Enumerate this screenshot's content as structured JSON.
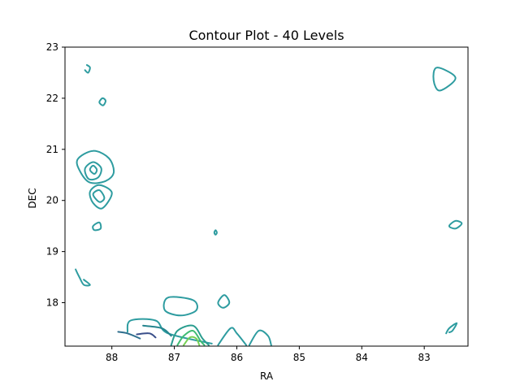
{
  "chart_data": {
    "type": "contour",
    "title": "Contour Plot - 40 Levels",
    "xlabel": "RA",
    "ylabel": "DEC",
    "xlim": [
      88.75,
      82.3
    ],
    "ylim": [
      17.15,
      23.0
    ],
    "x_inverted": true,
    "xticks": [
      88,
      87,
      86,
      85,
      84,
      83
    ],
    "yticks": [
      18,
      19,
      20,
      21,
      22,
      23
    ],
    "grid": false,
    "colormap": "viridis-like (dark blue to light green)",
    "contours": [
      {
        "color": "#2e9ca0",
        "closed": false,
        "points": [
          [
            88.4,
            22.65
          ],
          [
            88.35,
            22.6
          ],
          [
            88.38,
            22.5
          ],
          [
            88.43,
            22.55
          ]
        ]
      },
      {
        "color": "#2e9ca0",
        "closed": true,
        "points": [
          [
            88.15,
            22.0
          ],
          [
            88.1,
            21.95
          ],
          [
            88.14,
            21.86
          ],
          [
            88.2,
            21.92
          ]
        ]
      },
      {
        "color": "#2e9ca0",
        "closed": true,
        "points": [
          [
            88.55,
            20.8
          ],
          [
            88.3,
            20.97
          ],
          [
            88.05,
            20.83
          ],
          [
            87.97,
            20.55
          ],
          [
            88.1,
            20.38
          ],
          [
            88.35,
            20.35
          ],
          [
            88.5,
            20.55
          ]
        ]
      },
      {
        "color": "#2e9ca0",
        "closed": true,
        "points": [
          [
            88.43,
            20.62
          ],
          [
            88.3,
            20.75
          ],
          [
            88.17,
            20.63
          ],
          [
            88.22,
            20.45
          ],
          [
            88.37,
            20.42
          ]
        ]
      },
      {
        "color": "#2e9ca0",
        "closed": true,
        "points": [
          [
            88.35,
            20.6
          ],
          [
            88.3,
            20.68
          ],
          [
            88.24,
            20.6
          ],
          [
            88.28,
            20.52
          ]
        ]
      },
      {
        "color": "#2e9ca0",
        "closed": true,
        "points": [
          [
            88.35,
            20.17
          ],
          [
            88.2,
            20.3
          ],
          [
            88.0,
            20.15
          ],
          [
            88.15,
            19.85
          ],
          [
            88.3,
            19.95
          ]
        ]
      },
      {
        "color": "#2e9ca0",
        "closed": true,
        "points": [
          [
            88.3,
            20.12
          ],
          [
            88.2,
            20.2
          ],
          [
            88.12,
            20.05
          ],
          [
            88.2,
            19.97
          ]
        ]
      },
      {
        "color": "#2e9ca0",
        "closed": true,
        "points": [
          [
            88.3,
            19.5
          ],
          [
            88.2,
            19.57
          ],
          [
            88.18,
            19.45
          ],
          [
            88.28,
            19.42
          ]
        ]
      },
      {
        "color": "#2e9ca0",
        "closed": false,
        "points": [
          [
            88.58,
            18.65
          ],
          [
            88.52,
            18.5
          ],
          [
            88.45,
            18.35
          ],
          [
            88.35,
            18.35
          ],
          [
            88.45,
            18.45
          ]
        ]
      },
      {
        "color": "#2e9ca0",
        "closed": true,
        "points": [
          [
            86.36,
            19.37
          ],
          [
            86.34,
            19.42
          ],
          [
            86.32,
            19.37
          ],
          [
            86.34,
            19.33
          ]
        ]
      },
      {
        "color": "#2e9ca0",
        "closed": true,
        "points": [
          [
            87.1,
            18.1
          ],
          [
            86.7,
            18.05
          ],
          [
            86.65,
            17.85
          ],
          [
            86.9,
            17.75
          ],
          [
            87.15,
            17.85
          ]
        ]
      },
      {
        "color": "#2e9ca0",
        "closed": true,
        "points": [
          [
            86.2,
            18.15
          ],
          [
            86.12,
            18.0
          ],
          [
            86.22,
            17.9
          ],
          [
            86.3,
            18.0
          ]
        ]
      },
      {
        "color": "#2e9ca0",
        "closed": true,
        "points": [
          [
            82.8,
            22.6
          ],
          [
            82.5,
            22.4
          ],
          [
            82.75,
            22.15
          ],
          [
            82.85,
            22.35
          ]
        ]
      },
      {
        "color": "#2e9ca0",
        "closed": true,
        "points": [
          [
            82.5,
            19.6
          ],
          [
            82.6,
            19.5
          ],
          [
            82.5,
            19.45
          ],
          [
            82.4,
            19.55
          ]
        ]
      },
      {
        "color": "#2e9ca0",
        "closed": false,
        "points": [
          [
            82.65,
            17.4
          ],
          [
            82.6,
            17.5
          ],
          [
            82.48,
            17.6
          ],
          [
            82.55,
            17.45
          ],
          [
            82.6,
            17.42
          ]
        ]
      },
      {
        "color": "#2e9ca0",
        "closed": false,
        "points": [
          [
            87.75,
            17.43
          ],
          [
            87.7,
            17.65
          ],
          [
            87.3,
            17.65
          ],
          [
            87.1,
            17.4
          ],
          [
            86.4,
            17.2
          ]
        ]
      },
      {
        "color": "#2e9ca0",
        "closed": false,
        "points": [
          [
            86.3,
            17.17
          ],
          [
            86.1,
            17.5
          ],
          [
            86.0,
            17.4
          ],
          [
            85.85,
            17.17
          ]
        ]
      },
      {
        "color": "#2e9ca0",
        "closed": false,
        "points": [
          [
            85.8,
            17.17
          ],
          [
            85.65,
            17.45
          ],
          [
            85.5,
            17.35
          ],
          [
            85.45,
            17.17
          ]
        ]
      },
      {
        "color": "#2f6f8e",
        "closed": false,
        "points": [
          [
            87.9,
            17.43
          ],
          [
            87.75,
            17.4
          ],
          [
            87.55,
            17.3
          ]
        ]
      },
      {
        "color": "#3b4f8a",
        "closed": false,
        "points": [
          [
            87.6,
            17.38
          ],
          [
            87.4,
            17.4
          ],
          [
            87.3,
            17.32
          ]
        ]
      },
      {
        "color": "#25858e",
        "closed": false,
        "points": [
          [
            87.5,
            17.55
          ],
          [
            87.2,
            17.5
          ],
          [
            87.05,
            17.35
          ]
        ]
      },
      {
        "color": "#2a9d8f",
        "closed": false,
        "points": [
          [
            87.05,
            17.17
          ],
          [
            86.95,
            17.45
          ],
          [
            86.7,
            17.55
          ],
          [
            86.55,
            17.3
          ],
          [
            86.45,
            17.17
          ]
        ]
      },
      {
        "color": "#3fbc73",
        "closed": false,
        "points": [
          [
            86.95,
            17.17
          ],
          [
            86.85,
            17.35
          ],
          [
            86.7,
            17.45
          ],
          [
            86.58,
            17.25
          ],
          [
            86.52,
            17.17
          ]
        ]
      },
      {
        "color": "#76d054",
        "closed": false,
        "points": [
          [
            86.85,
            17.17
          ],
          [
            86.75,
            17.32
          ],
          [
            86.65,
            17.3
          ],
          [
            86.6,
            17.17
          ]
        ]
      }
    ]
  }
}
